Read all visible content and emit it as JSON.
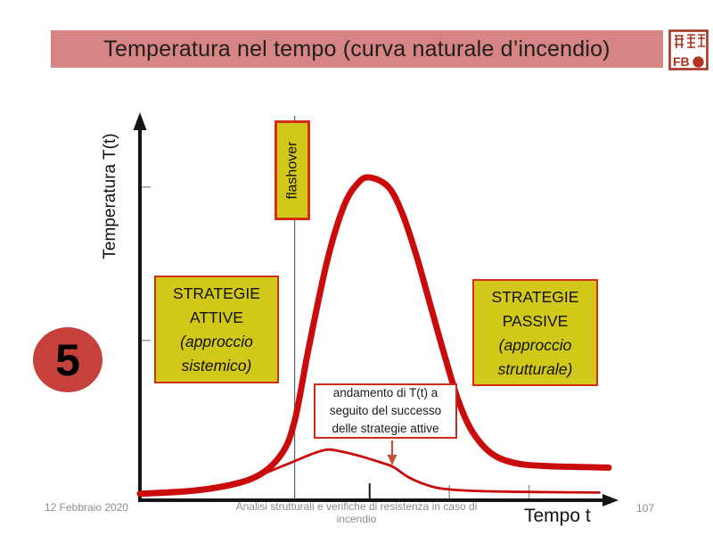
{
  "slide": {
    "title": "Temperatura nel tempo (curva naturale d’incendio)",
    "badge": "5"
  },
  "stamp": {
    "letters": "FB"
  },
  "labels": {
    "flashover": "flashover",
    "active_box": {
      "line1": "STRATEGIE ATTIVE",
      "line2": "(approccio sistemico)"
    },
    "passive_box": {
      "line1": "STRATEGIE PASSIVE",
      "line2": "(approccio strutturale)"
    },
    "annotation": "andamento di T(t) a seguito del successo delle strategie attive"
  },
  "footer": {
    "date": "12 Febbraio 2020",
    "course": "Analisi strutturali e verifiche di resistenza in caso di incendio",
    "page": "107"
  },
  "colors": {
    "title_bar_bg": "#d68484",
    "curve_red": "#c90b0b",
    "box_yellow": "#d2c81a",
    "box_border_red": "#d12f12",
    "badge_red": "#c6403c",
    "annotation_border": "#cc2a1a",
    "annotation_arrow": "#c2503c",
    "axis_black": "#151515",
    "tick_gray": "#999999",
    "flashover_line_gray": "#606060",
    "footer_gray": "#8c8c8c",
    "seal_red": "#a93322"
  },
  "chart_data": {
    "type": "line",
    "title": "Temperatura nel tempo (curva naturale d’incendio)",
    "xlabel": "Tempo t",
    "ylabel": "Temperatura T(t)",
    "xlim": [
      0,
      100
    ],
    "ylim": [
      0,
      100
    ],
    "grid": false,
    "legend": "none",
    "axis_values": "qualitative, estimated as percent of axis span",
    "flashover_time_percent": 33,
    "x_ticks": [
      {
        "t": 49,
        "emphasis": true
      },
      {
        "t": 66
      },
      {
        "t": 83
      }
    ],
    "y_ticks": [
      {
        "T": 41
      },
      {
        "T": 81
      }
    ],
    "annotations": [
      "flashover",
      "andamento di T(t) a seguito del successo delle strategie attive"
    ],
    "series": [
      {
        "name": "curva naturale d’incendio",
        "style": "thick",
        "points": [
          [
            0,
            1
          ],
          [
            13,
            2
          ],
          [
            24,
            5
          ],
          [
            30,
            11
          ],
          [
            33,
            20
          ],
          [
            36,
            39
          ],
          [
            40,
            62
          ],
          [
            43.5,
            76
          ],
          [
            46.5,
            82
          ],
          [
            49,
            83.5
          ],
          [
            53,
            81
          ],
          [
            56,
            74
          ],
          [
            59,
            63
          ],
          [
            62,
            50
          ],
          [
            65,
            37
          ],
          [
            68,
            25
          ],
          [
            71,
            17
          ],
          [
            75,
            11.5
          ],
          [
            80,
            9
          ],
          [
            87,
            8.2
          ],
          [
            100,
            7.8
          ]
        ]
      },
      {
        "name": "andamento di T(t) a seguito del successo delle strategie attive",
        "style": "thin",
        "points": [
          [
            24,
            5
          ],
          [
            30,
            8
          ],
          [
            33,
            9.5
          ],
          [
            37,
            11.5
          ],
          [
            40,
            12.5
          ],
          [
            43,
            12
          ],
          [
            47,
            10.8
          ],
          [
            51,
            9.3
          ],
          [
            54,
            8
          ],
          [
            57,
            5.5
          ],
          [
            60,
            3.8
          ],
          [
            64,
            2.4
          ],
          [
            70,
            1.8
          ],
          [
            80,
            1.5
          ],
          [
            98,
            1.3
          ]
        ]
      }
    ]
  }
}
